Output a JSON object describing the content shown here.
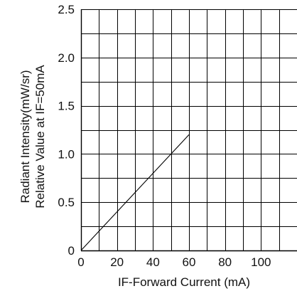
{
  "chart_data": {
    "type": "line",
    "title": "",
    "xlabel": "IF-Forward Current (mA)",
    "ylabel_lines": [
      "Radiant Intensity(mW/sr)",
      "Relative Value at IF=50mA"
    ],
    "xlim": [
      0,
      120
    ],
    "ylim": [
      0,
      2.5
    ],
    "x_ticks": [
      {
        "value": 0,
        "label": "0"
      },
      {
        "value": 20,
        "label": "20"
      },
      {
        "value": 40,
        "label": "40"
      },
      {
        "value": 60,
        "label": "60"
      },
      {
        "value": 80,
        "label": "80"
      },
      {
        "value": 100,
        "label": "100"
      }
    ],
    "y_ticks": [
      {
        "value": 0,
        "label": "0"
      },
      {
        "value": 0.5,
        "label": "0.5"
      },
      {
        "value": 1.0,
        "label": "1.0"
      },
      {
        "value": 1.5,
        "label": "1.5"
      },
      {
        "value": 2.0,
        "label": "2.0"
      },
      {
        "value": 2.5,
        "label": "2.5"
      }
    ],
    "grid": true,
    "x_grid_step": 10,
    "y_grid_step": 0.25,
    "series": [
      {
        "x": [
          0,
          60
        ],
        "y": [
          0,
          1.2
        ],
        "color": "#000000"
      }
    ],
    "watermark_color": "#ececec"
  }
}
